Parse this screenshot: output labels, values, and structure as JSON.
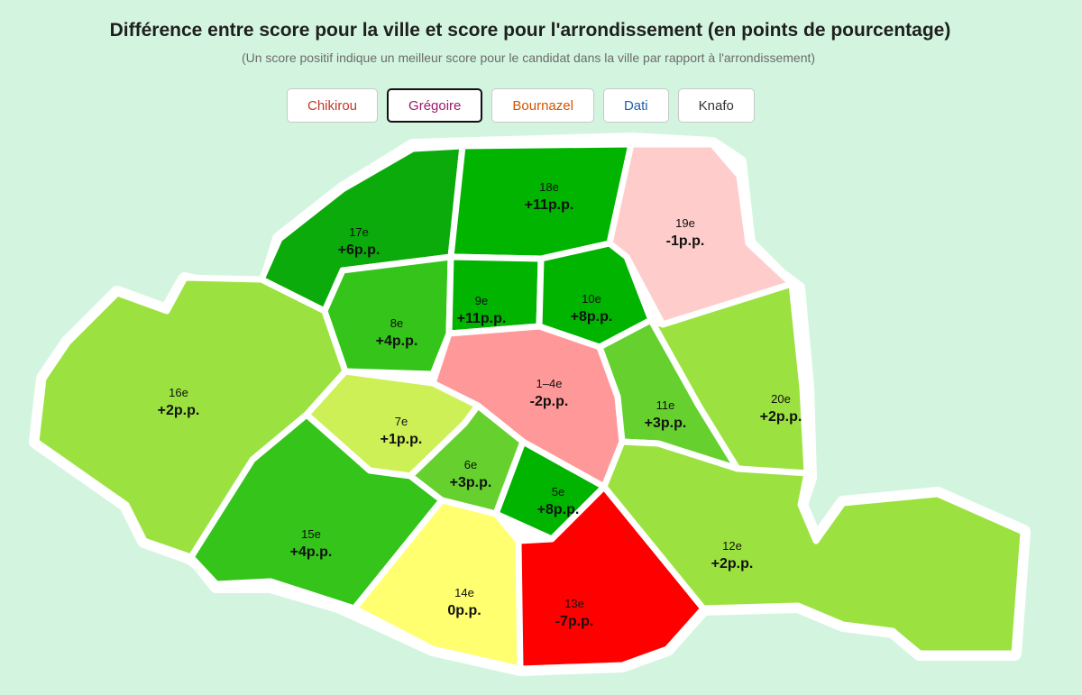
{
  "header": {
    "title": "Différence entre score pour la ville et score pour l'arrondissement (en points de pourcentage)",
    "subtitle": "(Un score positif indique un meilleur score pour le candidat dans la ville par rapport à l'arrondissement)"
  },
  "candidates": [
    {
      "label": "Chikirou",
      "color": "#c0392b",
      "active": false
    },
    {
      "label": "Grégoire",
      "color": "#9c1a6b",
      "active": true
    },
    {
      "label": "Bournazel",
      "color": "#d35400",
      "active": false
    },
    {
      "label": "Dati",
      "color": "#1f5fb0",
      "active": false
    },
    {
      "label": "Knafo",
      "color": "#333333",
      "active": false
    }
  ],
  "arrondissements": [
    {
      "name": "17e",
      "value": "+6p.p.",
      "fill": "#0aab0a"
    },
    {
      "name": "18e",
      "value": "+11p.p.",
      "fill": "#00b400"
    },
    {
      "name": "19e",
      "value": "-1p.p.",
      "fill": "#ffcccc"
    },
    {
      "name": "16e",
      "value": "+2p.p.",
      "fill": "#9be240"
    },
    {
      "name": "8e",
      "value": "+4p.p.",
      "fill": "#34c41a"
    },
    {
      "name": "9e",
      "value": "+11p.p.",
      "fill": "#00b400"
    },
    {
      "name": "10e",
      "value": "+8p.p.",
      "fill": "#00b400"
    },
    {
      "name": "1–4e",
      "value": "-2p.p.",
      "fill": "#ff9999"
    },
    {
      "name": "11e",
      "value": "+3p.p.",
      "fill": "#66d12e"
    },
    {
      "name": "20e",
      "value": "+2p.p.",
      "fill": "#9be240"
    },
    {
      "name": "7e",
      "value": "+1p.p.",
      "fill": "#ccf055"
    },
    {
      "name": "6e",
      "value": "+3p.p.",
      "fill": "#66d12e"
    },
    {
      "name": "5e",
      "value": "+8p.p.",
      "fill": "#00b400"
    },
    {
      "name": "15e",
      "value": "+4p.p.",
      "fill": "#34c41a"
    },
    {
      "name": "14e",
      "value": "0p.p.",
      "fill": "#ffff70"
    },
    {
      "name": "13e",
      "value": "-7p.p.",
      "fill": "#ff0000"
    },
    {
      "name": "12e",
      "value": "+2p.p.",
      "fill": "#9be240"
    }
  ]
}
